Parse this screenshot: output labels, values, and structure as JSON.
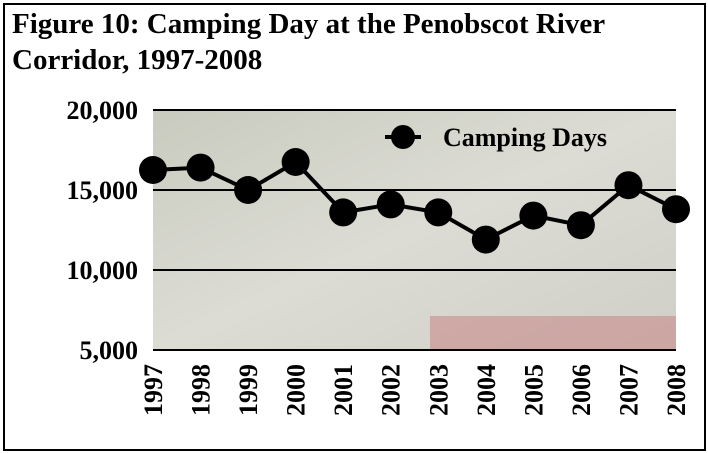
{
  "chart_data": {
    "type": "line",
    "title": "Figure 10: Camping Day at the Penobscot River Corridor, 1997-2008",
    "categories": [
      "1997",
      "1998",
      "1999",
      "2000",
      "2001",
      "2002",
      "2003",
      "2004",
      "2005",
      "2006",
      "2007",
      "2008"
    ],
    "series": [
      {
        "name": "Camping Days",
        "color": "#000000",
        "values": [
          16250,
          16400,
          15000,
          16750,
          13600,
          14100,
          13600,
          11900,
          13400,
          12800,
          15300,
          13800
        ]
      }
    ],
    "ylim": [
      5000,
      20000
    ],
    "yticks": [
      {
        "value": 5000,
        "label": "5,000"
      },
      {
        "value": 10000,
        "label": "10,000"
      },
      {
        "value": 15000,
        "label": "15,000"
      },
      {
        "value": 20000,
        "label": "20,000"
      }
    ],
    "grid": true,
    "legend": "top-right"
  }
}
